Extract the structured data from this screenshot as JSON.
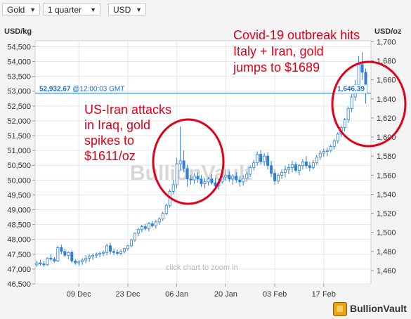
{
  "toolbar": {
    "metal": "Gold",
    "period": "1 quarter",
    "currency": "USD"
  },
  "icons": {
    "dropdown": "chevron-down-icon"
  },
  "colors": {
    "candle": "#2f7fd6",
    "price_line": "#1a6fc2",
    "annotation_text": "#e0001a",
    "annotation_ring": "#e0001a",
    "price_label": "#1a6fc2"
  },
  "watermark": "BullionVault",
  "zoom_hint": "click chart to zoom in",
  "logo_text": "BullionVault",
  "chart_data": {
    "type": "candlestick",
    "left_axis": {
      "label": "USD/kg",
      "range": [
        46500,
        54700
      ],
      "ticks": [
        "46,500",
        "47,000",
        "47,500",
        "48,000",
        "48,500",
        "49,000",
        "49,500",
        "50,000",
        "50,500",
        "51,000",
        "51,500",
        "52,000",
        "52,500",
        "53,000",
        "53,500",
        "54,000",
        "54,500"
      ]
    },
    "right_axis": {
      "label": "USD/oz",
      "range": [
        1446,
        1701
      ],
      "ticks": [
        "1,460",
        "1,480",
        "1,500",
        "1,520",
        "1,540",
        "1,560",
        "1,580",
        "1,600",
        "1,620",
        "1,640",
        "1,660",
        "1,680",
        "1,700"
      ]
    },
    "x_ticks": [
      {
        "label": "09 Dec",
        "day": 9
      },
      {
        "label": "23 Dec",
        "day": 23
      },
      {
        "label": "06 Jan",
        "day": 37
      },
      {
        "label": "20 Jan",
        "day": 51
      },
      {
        "label": "03 Feb",
        "day": 65
      },
      {
        "label": "17 Feb",
        "day": 79
      }
    ],
    "x_range_days": [
      -3.5,
      92.5
    ],
    "current_price": {
      "kg": 52932.67,
      "kg_label": "52,932.67",
      "time": "@12:00:03 GMT",
      "oz_label": "1,646.39"
    },
    "candles": [
      [
        -3,
        1466,
        1470,
        1464,
        1468
      ],
      [
        -2,
        1468,
        1471,
        1465,
        1467
      ],
      [
        -1,
        1467,
        1470,
        1464,
        1466
      ],
      [
        0,
        1466,
        1474,
        1465,
        1473
      ],
      [
        1,
        1473,
        1477,
        1470,
        1472
      ],
      [
        2,
        1472,
        1474,
        1468,
        1470
      ],
      [
        3,
        1470,
        1486,
        1469,
        1484
      ],
      [
        4,
        1484,
        1487,
        1477,
        1480
      ],
      [
        5,
        1480,
        1483,
        1474,
        1476
      ],
      [
        6,
        1476,
        1480,
        1472,
        1479
      ],
      [
        7,
        1479,
        1481,
        1468,
        1470
      ],
      [
        8,
        1470,
        1472,
        1466,
        1468
      ],
      [
        9,
        1468,
        1471,
        1465,
        1469
      ],
      [
        10,
        1469,
        1473,
        1466,
        1471
      ],
      [
        11,
        1471,
        1476,
        1468,
        1473
      ],
      [
        12,
        1473,
        1477,
        1469,
        1475
      ],
      [
        13,
        1475,
        1478,
        1471,
        1476
      ],
      [
        14,
        1476,
        1479,
        1473,
        1477
      ],
      [
        15,
        1477,
        1480,
        1474,
        1478
      ],
      [
        16,
        1478,
        1481,
        1475,
        1479
      ],
      [
        17,
        1479,
        1488,
        1476,
        1486
      ],
      [
        18,
        1486,
        1489,
        1477,
        1480
      ],
      [
        19,
        1480,
        1483,
        1476,
        1479
      ],
      [
        20,
        1479,
        1482,
        1476,
        1478
      ],
      [
        21,
        1478,
        1482,
        1476,
        1480
      ],
      [
        22,
        1480,
        1484,
        1478,
        1483
      ],
      [
        23,
        1483,
        1487,
        1481,
        1486
      ],
      [
        24,
        1486,
        1493,
        1484,
        1492
      ],
      [
        25,
        1492,
        1500,
        1490,
        1499
      ],
      [
        26,
        1499,
        1505,
        1496,
        1503
      ],
      [
        27,
        1503,
        1508,
        1500,
        1506
      ],
      [
        28,
        1506,
        1509,
        1502,
        1504
      ],
      [
        29,
        1504,
        1511,
        1501,
        1509
      ],
      [
        30,
        1509,
        1512,
        1505,
        1507
      ],
      [
        31,
        1507,
        1513,
        1504,
        1511
      ],
      [
        32,
        1511,
        1516,
        1508,
        1514
      ],
      [
        33,
        1514,
        1522,
        1512,
        1520
      ],
      [
        34,
        1520,
        1530,
        1518,
        1528
      ],
      [
        35,
        1528,
        1545,
        1526,
        1543
      ],
      [
        36,
        1543,
        1555,
        1540,
        1550
      ],
      [
        37,
        1550,
        1578,
        1546,
        1572
      ],
      [
        38,
        1572,
        1611,
        1565,
        1575
      ],
      [
        39,
        1575,
        1586,
        1563,
        1567
      ],
      [
        40,
        1567,
        1571,
        1548,
        1556
      ],
      [
        41,
        1556,
        1560,
        1550,
        1555
      ],
      [
        42,
        1555,
        1562,
        1551,
        1559
      ],
      [
        43,
        1559,
        1563,
        1552,
        1556
      ],
      [
        44,
        1556,
        1560,
        1548,
        1551
      ],
      [
        45,
        1551,
        1557,
        1546,
        1553
      ],
      [
        46,
        1553,
        1558,
        1549,
        1556
      ],
      [
        47,
        1556,
        1561,
        1550,
        1552
      ],
      [
        48,
        1552,
        1557,
        1546,
        1549
      ],
      [
        49,
        1549,
        1556,
        1545,
        1553
      ],
      [
        50,
        1553,
        1562,
        1551,
        1558
      ],
      [
        51,
        1558,
        1566,
        1554,
        1560
      ],
      [
        52,
        1560,
        1564,
        1553,
        1556
      ],
      [
        53,
        1556,
        1561,
        1550,
        1559
      ],
      [
        54,
        1559,
        1563,
        1552,
        1555
      ],
      [
        55,
        1555,
        1559,
        1548,
        1553
      ],
      [
        56,
        1553,
        1560,
        1549,
        1557
      ],
      [
        57,
        1557,
        1564,
        1553,
        1561
      ],
      [
        58,
        1561,
        1570,
        1558,
        1568
      ],
      [
        59,
        1568,
        1576,
        1565,
        1573
      ],
      [
        60,
        1573,
        1585,
        1570,
        1582
      ],
      [
        61,
        1582,
        1586,
        1571,
        1574
      ],
      [
        62,
        1574,
        1583,
        1570,
        1580
      ],
      [
        63,
        1580,
        1584,
        1566,
        1570
      ],
      [
        64,
        1570,
        1575,
        1558,
        1562
      ],
      [
        65,
        1562,
        1566,
        1550,
        1554
      ],
      [
        66,
        1554,
        1562,
        1551,
        1560
      ],
      [
        67,
        1560,
        1566,
        1556,
        1563
      ],
      [
        68,
        1563,
        1570,
        1558,
        1566
      ],
      [
        69,
        1566,
        1572,
        1561,
        1568
      ],
      [
        70,
        1568,
        1575,
        1563,
        1571
      ],
      [
        71,
        1571,
        1574,
        1563,
        1565
      ],
      [
        72,
        1565,
        1572,
        1560,
        1570
      ],
      [
        73,
        1570,
        1577,
        1566,
        1574
      ],
      [
        74,
        1574,
        1580,
        1567,
        1570
      ],
      [
        75,
        1570,
        1574,
        1564,
        1568
      ],
      [
        76,
        1568,
        1576,
        1566,
        1573
      ],
      [
        77,
        1573,
        1581,
        1571,
        1579
      ],
      [
        78,
        1579,
        1586,
        1576,
        1583
      ],
      [
        79,
        1583,
        1588,
        1579,
        1585
      ],
      [
        80,
        1585,
        1589,
        1580,
        1586
      ],
      [
        81,
        1586,
        1592,
        1584,
        1590
      ],
      [
        82,
        1590,
        1598,
        1587,
        1596
      ],
      [
        83,
        1596,
        1605,
        1593,
        1603
      ],
      [
        84,
        1603,
        1612,
        1600,
        1610
      ],
      [
        85,
        1610,
        1620,
        1606,
        1618
      ],
      [
        86,
        1618,
        1632,
        1615,
        1630
      ],
      [
        87,
        1630,
        1645,
        1626,
        1642
      ],
      [
        88,
        1642,
        1660,
        1638,
        1655
      ],
      [
        89,
        1655,
        1685,
        1650,
        1676
      ],
      [
        90,
        1676,
        1689,
        1660,
        1668
      ],
      [
        91,
        1668,
        1672,
        1635,
        1646
      ]
    ],
    "annotations": [
      {
        "text": "US-Iran attacks\nin Iraq, gold\nspikes to\n$1611/oz",
        "day": 38.5,
        "oz": 1570
      },
      {
        "text": "Covid-19 outbreak hits\nItaly + Iran, gold\njumps to $1689",
        "day": 89.5,
        "oz": 1660
      }
    ]
  }
}
